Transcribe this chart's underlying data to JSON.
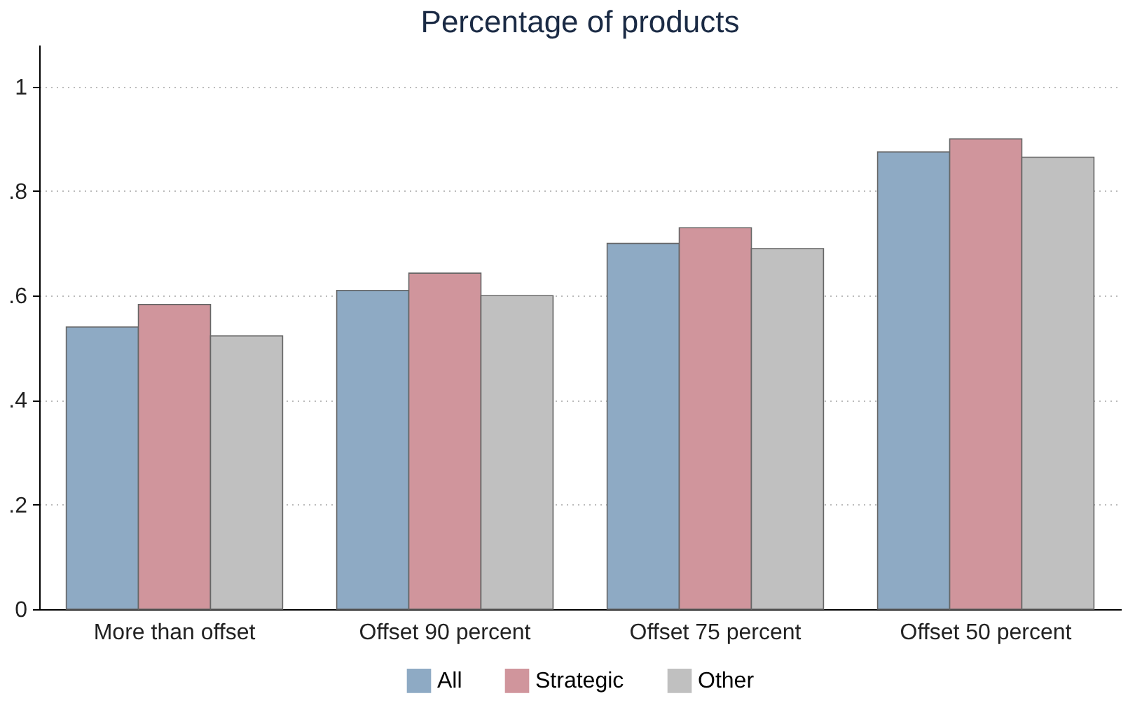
{
  "chart_data": {
    "type": "bar",
    "title": "Percentage of products",
    "categories": [
      "More than offset",
      "Offset 90 percent",
      "Offset 75 percent",
      "Offset 50 percent"
    ],
    "series": [
      {
        "name": "All",
        "color": "#8eaac4",
        "values": [
          0.54,
          0.61,
          0.7,
          0.875
        ]
      },
      {
        "name": "Strategic",
        "color": "#d0959c",
        "values": [
          0.583,
          0.643,
          0.73,
          0.9
        ]
      },
      {
        "name": "Other",
        "color": "#c0c0c0",
        "values": [
          0.523,
          0.6,
          0.69,
          0.865
        ]
      }
    ],
    "ylim": [
      0,
      1.08
    ],
    "yticks": [
      0,
      {
        "value": 0.2,
        "label": ".2"
      },
      {
        "value": 0.4,
        "label": ".4"
      },
      {
        "value": 0.6,
        "label": ".6"
      },
      {
        "value": 0.8,
        "label": ".8"
      },
      1
    ],
    "grid": "y",
    "legend": "bottom"
  }
}
